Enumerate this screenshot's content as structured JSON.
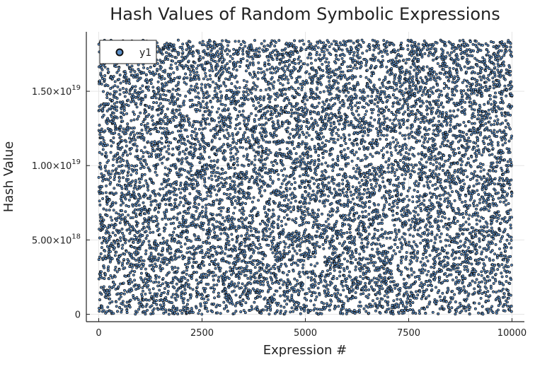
{
  "chart_data": {
    "type": "scatter",
    "title": "Hash Values of Random Symbolic Expressions",
    "xlabel": "Expression #",
    "ylabel": "Hash Value",
    "xlim": [
      -300,
      10300
    ],
    "ylim": [
      -5e+17,
      1.9e+19
    ],
    "x_ticks": [
      0,
      2500,
      5000,
      7500,
      10000
    ],
    "x_tick_labels": [
      "0",
      "2500",
      "5000",
      "7500",
      "10000"
    ],
    "y_ticks": [
      0,
      5e+18,
      1e+19,
      1.5e+19
    ],
    "y_tick_labels": [
      {
        "mantissa": "0",
        "exponent": ""
      },
      {
        "mantissa": "5.00×10",
        "exponent": "18"
      },
      {
        "mantissa": "1.00×10",
        "exponent": "19"
      },
      {
        "mantissa": "1.50×10",
        "exponent": "19"
      }
    ],
    "grid": true,
    "legend": {
      "position": "top-left",
      "entries": [
        "y1"
      ]
    },
    "series": [
      {
        "name": "y1",
        "marker_fill": "#5b8fc9",
        "marker_stroke": "#111111",
        "count": 10000,
        "x_range": [
          1,
          10000
        ],
        "y_range": [
          0,
          1.8446744e+19
        ],
        "distribution": "uniform"
      }
    ]
  },
  "colors": {
    "background": "#ffffff",
    "grid": "#e6e6e6",
    "axis": "#222222",
    "marker_fill": "#5b8fc9",
    "marker_stroke": "#111111"
  }
}
